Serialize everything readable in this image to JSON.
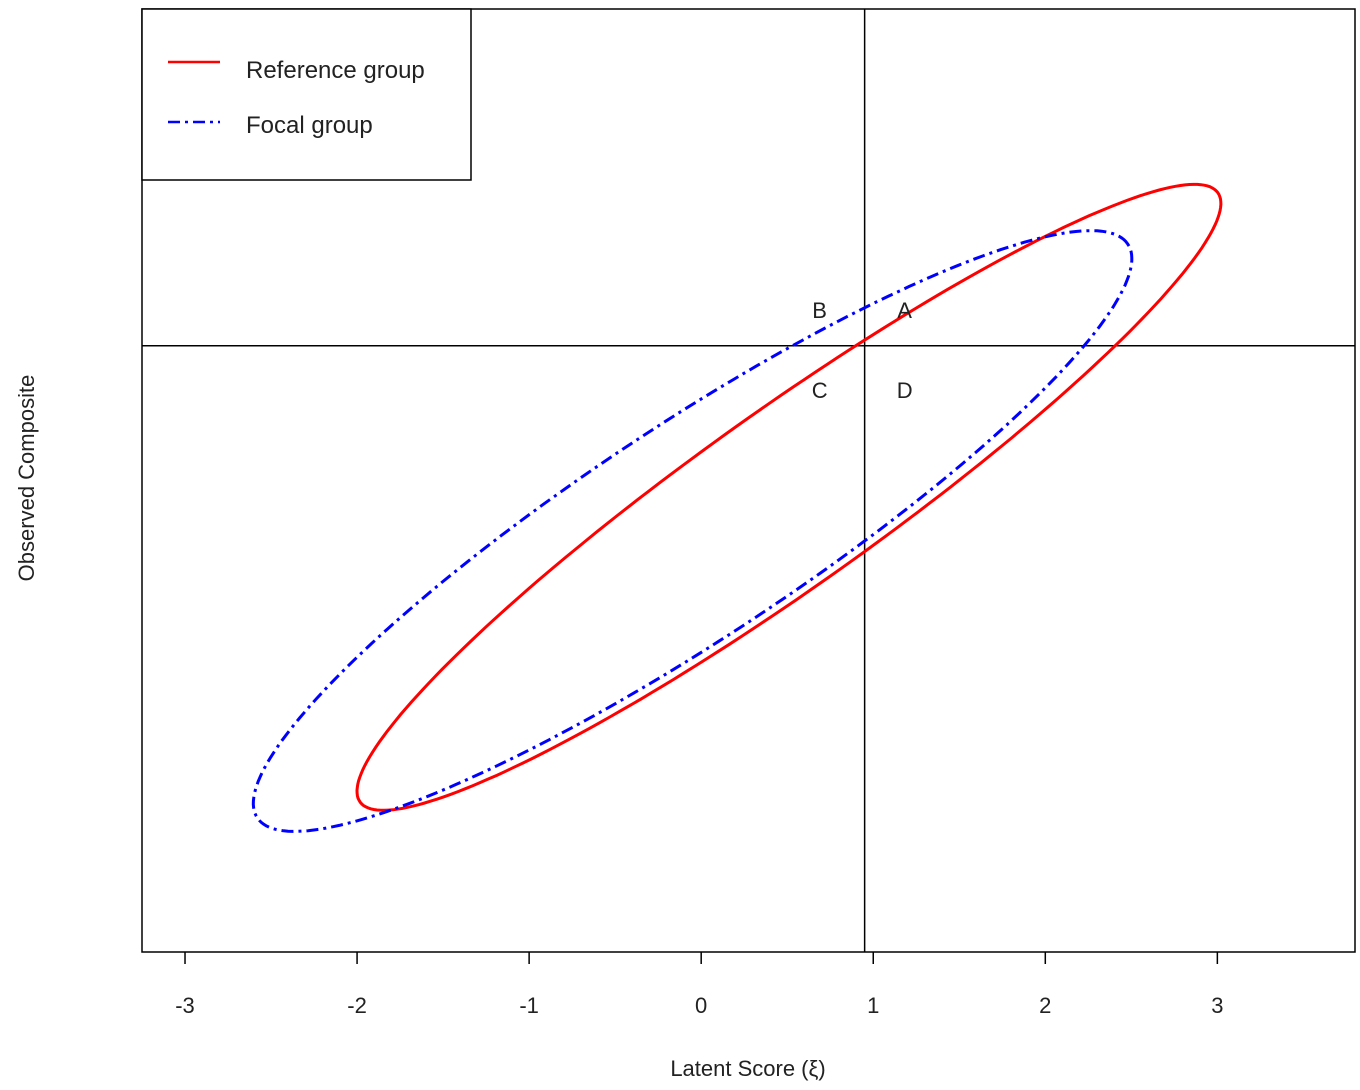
{
  "chart_data": {
    "type": "line",
    "title": "",
    "xlabel": "Latent Score (ξ)",
    "ylabel": "Observed Composite",
    "xlim": [
      -3.25,
      3.8
    ],
    "ylim": [
      -3.6,
      2.0
    ],
    "x_ticks": [
      "-3",
      "-2",
      "-1",
      "0",
      "1",
      "2",
      "3"
    ],
    "x_tick_values": [
      -3,
      -2,
      -1,
      0,
      1,
      2,
      3
    ],
    "y_ticks_shown": false,
    "grid": false,
    "legend_position": "top-left",
    "cutoff_lines": {
      "vertical_x": 0.95,
      "horizontal_y": 0.0
    },
    "quadrant_labels": [
      "B",
      "A",
      "C",
      "D"
    ],
    "series": [
      {
        "name": "Reference group",
        "color": "#ff0000",
        "style": "solid",
        "ellipse": {
          "center": [
            0.51,
            -0.9
          ],
          "semi_axis_major": 3.08,
          "semi_axis_minor": 0.52,
          "angle_deg": 36
        }
      },
      {
        "name": "Focal group",
        "color": "#0000ff",
        "style": "dashdot",
        "ellipse": {
          "center": [
            -0.05,
            -1.1
          ],
          "semi_axis_major": 3.05,
          "semi_axis_minor": 0.63,
          "angle_deg": 34
        }
      }
    ]
  }
}
